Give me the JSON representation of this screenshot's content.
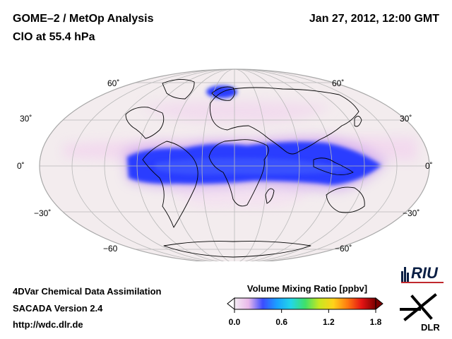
{
  "header": {
    "title_line1": "GOME–2 / MetOp Analysis",
    "title_line2": "ClO at 55.4 hPa",
    "datetime": "Jan 27, 2012, 12:00 GMT"
  },
  "map": {
    "projection": "Mollweide",
    "lat_labels_left": [
      "60˚",
      "30˚",
      "0˚",
      "−30˚",
      "−60"
    ],
    "lat_labels_right": [
      "60˚",
      "30˚",
      "0˚",
      "−30˚",
      "−60˚"
    ]
  },
  "footer": {
    "line1": "4DVar Chemical Data Assimilation",
    "line2": "SACADA Version 2.4",
    "line3": "http://wdc.dlr.de"
  },
  "colorbar": {
    "title": "Volume Mixing Ratio [ppbv]",
    "ticks": [
      "0.0",
      "0.6",
      "1.2",
      "1.8"
    ],
    "tick_values": [
      0.0,
      0.6,
      1.2,
      1.8
    ],
    "min": 0.0,
    "max": 1.8,
    "colors": [
      "#f4ecf4",
      "#e9b8ea",
      "#3b4cff",
      "#1aa0ff",
      "#22d6e8",
      "#3ee06a",
      "#c8e820",
      "#ffd21a",
      "#ff7a10",
      "#e51414",
      "#7a0000"
    ]
  },
  "logos": {
    "riu": "RIU",
    "dlr": "DLR"
  },
  "colors": {
    "ocean_bg": "#f3ecee",
    "clo_high": "#1f3cff",
    "clo_low": "#f2c8ef",
    "coastline": "#000000",
    "grid": "#b9b9b9"
  }
}
